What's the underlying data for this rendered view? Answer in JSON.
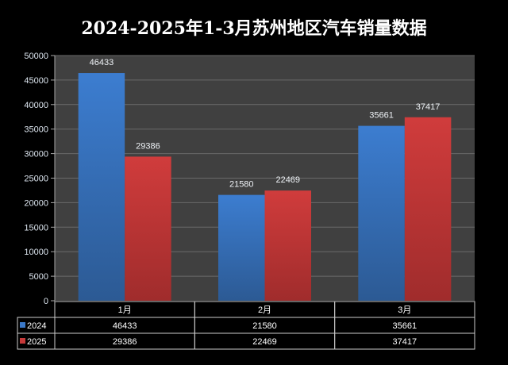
{
  "chart_data": {
    "type": "bar",
    "title": "2024-2025年1-3月苏州地区汽车销量数据",
    "categories": [
      "1月",
      "2月",
      "3月"
    ],
    "series": [
      {
        "name": "2024",
        "values": [
          46433,
          21580,
          35661
        ],
        "color": "#3a78c8"
      },
      {
        "name": "2025",
        "values": [
          29386,
          22469,
          37417
        ],
        "color": "#c83a3a"
      }
    ],
    "ylim": [
      0,
      50000
    ],
    "yticks": [
      0,
      5000,
      10000,
      15000,
      20000,
      25000,
      30000,
      35000,
      40000,
      45000,
      50000
    ],
    "grid": true,
    "legend": "data-table-bottom",
    "data_table": true
  }
}
